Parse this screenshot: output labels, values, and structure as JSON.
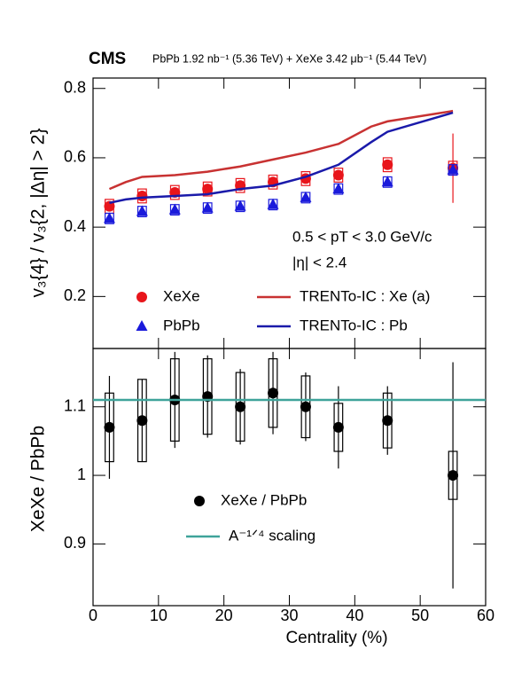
{
  "chart_data": [
    {
      "type": "scatter",
      "experiment": "CMS",
      "subtitle": "PbPb 1.92 nb⁻¹ (5.36 TeV) + XeXe 3.42 μb⁻¹ (5.44 TeV)",
      "ylabel": "v₃{4} / v₃{2, |Δη| > 2}",
      "annotations": [
        "0.5 < pT < 3.0 GeV/c",
        "|η| < 2.4"
      ],
      "xlim": [
        0,
        60
      ],
      "xticks": [
        0,
        10,
        20,
        30,
        40,
        50,
        60
      ],
      "ylim": [
        0.05,
        0.83
      ],
      "yticks": [
        0.2,
        0.4,
        0.6,
        0.8
      ],
      "series": [
        {
          "name": "XeXe",
          "color": "#e8151b",
          "marker": "circle",
          "x": [
            2.5,
            7.5,
            12.5,
            17.5,
            22.5,
            27.5,
            32.5,
            37.5,
            45,
            55
          ],
          "values": [
            0.46,
            0.49,
            0.5,
            0.51,
            0.52,
            0.53,
            0.54,
            0.55,
            0.58,
            0.57
          ],
          "errors": [
            0.005,
            0.005,
            0.005,
            0.005,
            0.005,
            0.005,
            0.006,
            0.008,
            0.012,
            0.1
          ],
          "sys": [
            0.02,
            0.02,
            0.02,
            0.02,
            0.02,
            0.02,
            0.02,
            0.02,
            0.02,
            0.02
          ]
        },
        {
          "name": "PbPb",
          "color": "#1a1adb",
          "marker": "triangle",
          "x": [
            2.5,
            7.5,
            12.5,
            17.5,
            22.5,
            27.5,
            32.5,
            37.5,
            45,
            55
          ],
          "values": [
            0.425,
            0.445,
            0.45,
            0.455,
            0.46,
            0.465,
            0.485,
            0.51,
            0.53,
            0.565
          ],
          "errors": [
            0.003,
            0.003,
            0.003,
            0.003,
            0.003,
            0.003,
            0.004,
            0.004,
            0.005,
            0.01
          ],
          "sys": [
            0.015,
            0.015,
            0.015,
            0.015,
            0.015,
            0.015,
            0.015,
            0.015,
            0.015,
            0.015
          ]
        },
        {
          "name": "TRENTo-IC : Xe (a)",
          "type": "line",
          "color": "#c83232",
          "x": [
            2.5,
            5,
            7.5,
            12.5,
            17.5,
            22.5,
            27.5,
            32.5,
            37.5,
            42.5,
            45,
            55
          ],
          "values": [
            0.51,
            0.53,
            0.545,
            0.55,
            0.56,
            0.575,
            0.595,
            0.615,
            0.64,
            0.69,
            0.705,
            0.735
          ]
        },
        {
          "name": "TRENTo-IC : Pb",
          "type": "line",
          "color": "#1a1aaa",
          "x": [
            2.5,
            5,
            7.5,
            12.5,
            17.5,
            22.5,
            27.5,
            32.5,
            37.5,
            42.5,
            45,
            55
          ],
          "values": [
            0.47,
            0.48,
            0.485,
            0.49,
            0.495,
            0.51,
            0.52,
            0.545,
            0.58,
            0.645,
            0.675,
            0.73
          ]
        }
      ]
    },
    {
      "type": "scatter",
      "xlabel": "Centrality (%)",
      "ylabel": "XeXe / PbPb",
      "xlim": [
        0,
        60
      ],
      "xticks": [
        0,
        10,
        20,
        30,
        40,
        50,
        60
      ],
      "ylim": [
        0.81,
        1.185
      ],
      "yticks": [
        0.9,
        1,
        1.1
      ],
      "series": [
        {
          "name": "XeXe / PbPb",
          "color": "#000000",
          "marker": "circle",
          "x": [
            2.5,
            7.5,
            12.5,
            17.5,
            22.5,
            27.5,
            32.5,
            37.5,
            45,
            55
          ],
          "values": [
            1.07,
            1.08,
            1.11,
            1.115,
            1.1,
            1.12,
            1.1,
            1.07,
            1.08,
            1.0
          ],
          "errors": [
            0.075,
            0.06,
            0.07,
            0.06,
            0.055,
            0.06,
            0.05,
            0.06,
            0.05,
            0.165
          ],
          "sys": [
            0.05,
            0.06,
            0.06,
            0.055,
            0.05,
            0.05,
            0.045,
            0.035,
            0.04,
            0.035
          ]
        },
        {
          "name": "A⁻¹ᐟ⁴ scaling",
          "type": "line",
          "color": "#3fa39a",
          "x": [
            0,
            60
          ],
          "values": [
            1.11,
            1.11
          ]
        }
      ]
    }
  ]
}
